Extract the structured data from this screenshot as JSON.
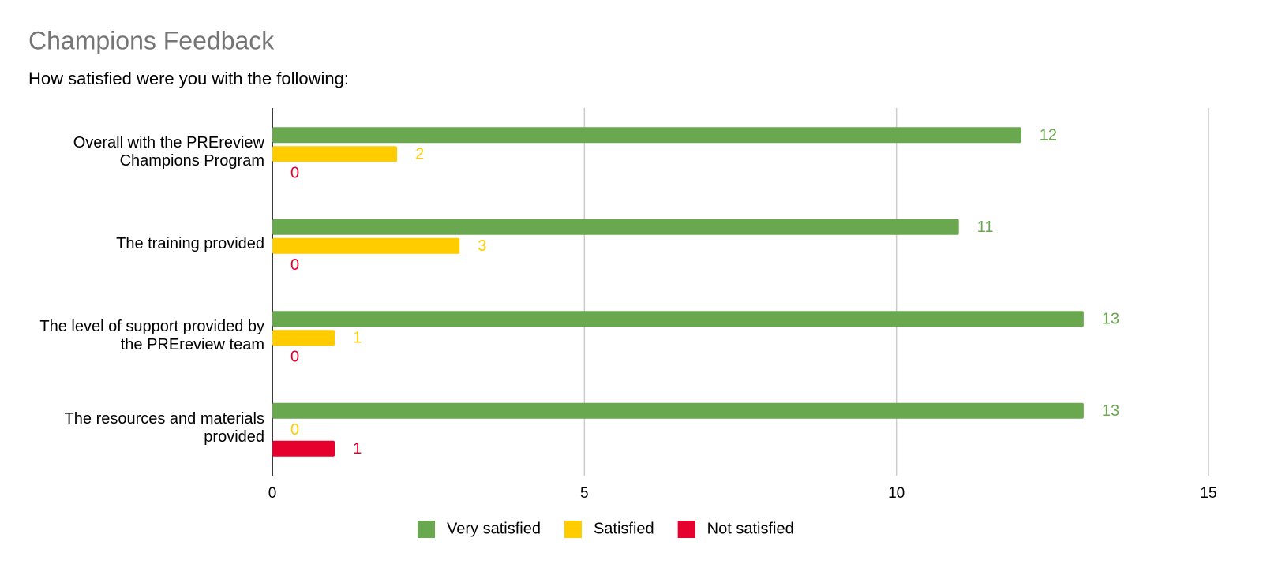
{
  "chart_data": {
    "type": "hbar",
    "title": "Champions Feedback",
    "subtitle": "How satisfied were you with the following:",
    "categories": [
      "Overall with the PREreview Champions Program",
      "The training provided",
      "The level of support provided by the PREreview team",
      "The resources and materials provided"
    ],
    "series": [
      {
        "name": "Very satisfied",
        "color": "#6aa84f",
        "values": [
          12,
          11,
          13,
          13
        ]
      },
      {
        "name": "Satisfied",
        "color": "#ffcc00",
        "values": [
          2,
          3,
          1,
          0
        ]
      },
      {
        "name": "Not satisfied",
        "color": "#e6002d",
        "values": [
          0,
          0,
          0,
          1
        ]
      }
    ],
    "xlim": [
      0,
      15
    ],
    "xticks": [
      0,
      5,
      10,
      15
    ],
    "grid": true,
    "legend": "bottom"
  }
}
